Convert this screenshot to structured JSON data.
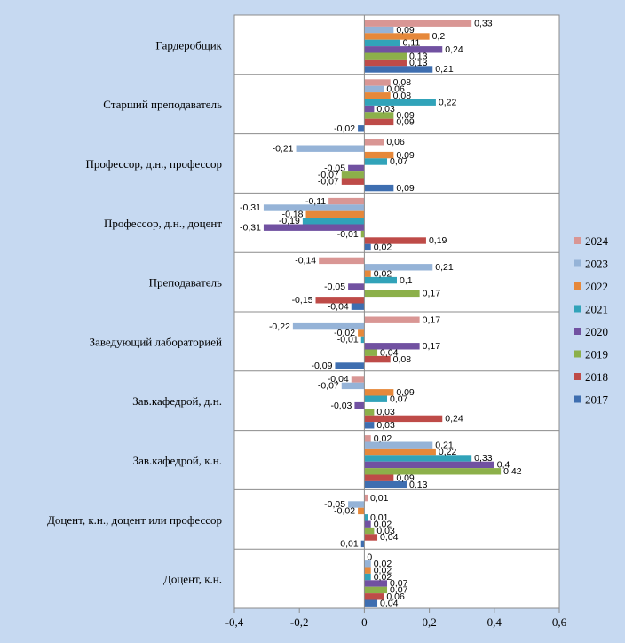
{
  "chart_data": {
    "type": "bar",
    "orientation": "horizontal",
    "categories": [
      "Гардеробщик",
      "Старший преподаватель",
      "Профессор,  д.н., профессор",
      "Профессор,  д.н., доцент",
      "Преподаватель",
      "Заведующий лабораторией",
      "Зав.кафедрой, д.н.",
      "Зав.кафедрой, к.н.",
      "Доцент, к.н., доцент или профессор",
      "Доцент, к.н."
    ],
    "series": [
      {
        "name": "2024",
        "color": "#d99694",
        "values": [
          0.33,
          0.08,
          0.06,
          -0.11,
          -0.14,
          0.17,
          -0.04,
          0.02,
          0.01,
          0
        ]
      },
      {
        "name": "2023",
        "color": "#95b3d7",
        "values": [
          0.09,
          0.06,
          -0.21,
          -0.31,
          0.21,
          -0.22,
          -0.07,
          0.21,
          -0.05,
          0.02
        ]
      },
      {
        "name": "2022",
        "color": "#e6883a",
        "values": [
          0.2,
          0.08,
          0.09,
          -0.18,
          0.02,
          -0.02,
          0.09,
          0.22,
          -0.02,
          0.02
        ]
      },
      {
        "name": "2021",
        "color": "#31a3b9",
        "values": [
          0.11,
          0.22,
          0.07,
          -0.19,
          0.1,
          -0.01,
          0.07,
          0.33,
          0.01,
          0.02
        ]
      },
      {
        "name": "2020",
        "color": "#7151a1",
        "values": [
          0.24,
          0.03,
          -0.05,
          -0.31,
          -0.05,
          0.17,
          -0.03,
          0.4,
          0.02,
          0.07
        ]
      },
      {
        "name": "2019",
        "color": "#8cb04a",
        "values": [
          0.13,
          0.09,
          -0.07,
          -0.01,
          0.17,
          0.04,
          0.03,
          0.42,
          0.03,
          0.07
        ]
      },
      {
        "name": "2018",
        "color": "#be4b48",
        "values": [
          0.13,
          0.09,
          -0.07,
          0.19,
          -0.15,
          0.08,
          0.24,
          0.09,
          0.04,
          0.06
        ]
      },
      {
        "name": "2017",
        "color": "#3e6eb0",
        "values": [
          0.21,
          -0.02,
          0.09,
          0.02,
          -0.04,
          -0.09,
          0.03,
          0.13,
          -0.01,
          0.04
        ]
      }
    ],
    "data_labels": [
      [
        "0,33",
        "0,09",
        "0,2",
        "0,11",
        "0,24",
        "0,13",
        "0,13",
        "0,21"
      ],
      [
        "0,08",
        "0,06",
        "0,08",
        "0,22",
        "0,03",
        "0,09",
        "0,09",
        "-0,02"
      ],
      [
        "0,06",
        "-0,21",
        "0,09",
        "0,07",
        "-0,05",
        "-0,07",
        "-0,07",
        "0,09"
      ],
      [
        "-0,11",
        "-0,31",
        "-0,18",
        "-0,19",
        "-0,31",
        "-0,01",
        "0,19",
        "0,02"
      ],
      [
        "-0,14",
        "0,21",
        "0,02",
        "0,1",
        "-0,05",
        "0,17",
        "-0,15",
        "-0,04"
      ],
      [
        "0,17",
        "-0,22",
        "-0,02",
        "-0,01",
        "0,17",
        "0,04",
        "0,08",
        "-0,09"
      ],
      [
        "-0,04",
        "-0,07",
        "0,09",
        "0,07",
        "-0,03",
        "0,03",
        "0,24",
        "0,03"
      ],
      [
        "0,02",
        "0,21",
        "0,22",
        "0,33",
        "0,4",
        "0,42",
        "0,09",
        "0,13"
      ],
      [
        "0,01",
        "-0,05",
        "-0,02",
        "0,01",
        "0,02",
        "0,03",
        "0,04",
        "-0,01"
      ],
      [
        "0",
        "0,02",
        "0,02",
        "0,02",
        "0,07",
        "0,07",
        "0,06",
        "0,04"
      ]
    ],
    "x_ticks": [
      "-0,4",
      "-0,2",
      "0",
      "0,2",
      "0,4",
      "0,6"
    ],
    "x_tick_values": [
      -0.4,
      -0.2,
      0,
      0.2,
      0.4,
      0.6
    ],
    "xlim": [
      -0.4,
      0.6
    ],
    "title": "",
    "xlabel": "",
    "ylabel": "",
    "grid": "horizontal category separators",
    "legend_position": "right"
  }
}
